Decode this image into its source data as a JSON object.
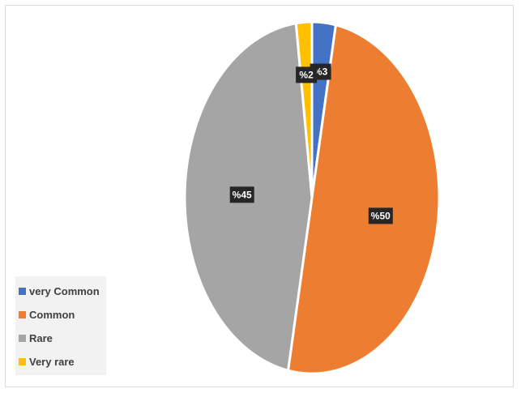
{
  "chart_data": {
    "type": "pie",
    "categories": [
      "very Common",
      "Common",
      "Rare",
      "Very rare"
    ],
    "values": [
      3,
      50,
      45,
      2
    ],
    "labels": [
      "%3",
      "%50",
      "%45",
      "%2"
    ],
    "colors": [
      "#4472c4",
      "#ed7d31",
      "#a5a5a5",
      "#ffc000"
    ],
    "legend_position": "bottom-left",
    "start_angle_deg": 0,
    "direction": "clockwise"
  }
}
